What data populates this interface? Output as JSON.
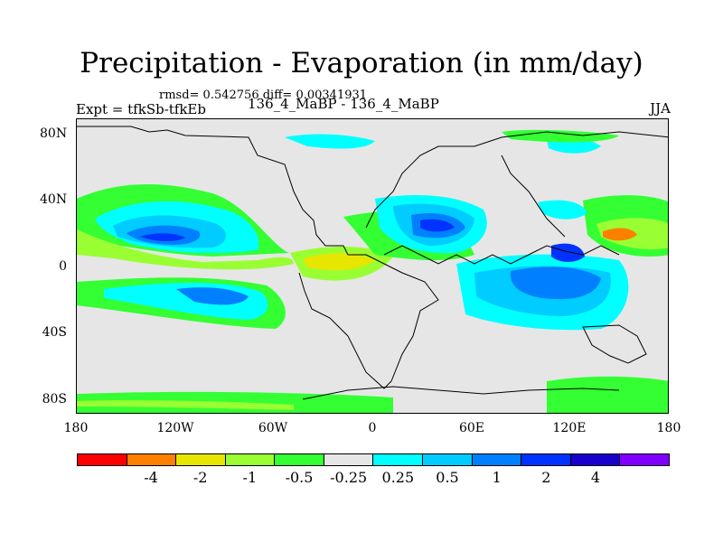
{
  "title": "Precipitation - Evaporation (in mm/day)",
  "stats": "rmsd= 0.542756  diff= 0.00341931",
  "experiment": "Expt = tfkSb-tfkEb",
  "subtitle": "136_4_MaBP - 136_4_MaBP",
  "season": "JJA",
  "y_ticks": [
    "80N",
    "40N",
    "0",
    "40S",
    "80S"
  ],
  "x_ticks": [
    "180",
    "120W",
    "60W",
    "0",
    "60E",
    "120E",
    "180"
  ],
  "colorbar": {
    "colors": [
      "#ff0000",
      "#ff8000",
      "#e6e600",
      "#99ff33",
      "#33ff33",
      "#e6e6e6",
      "#00ffff",
      "#00ccff",
      "#0080ff",
      "#0033ff",
      "#1a00cc",
      "#8000ff"
    ],
    "labels": [
      "-4",
      "-2",
      "-1",
      "-0.5",
      "-0.25",
      "0.25",
      "0.5",
      "1",
      "2",
      "4"
    ]
  }
}
